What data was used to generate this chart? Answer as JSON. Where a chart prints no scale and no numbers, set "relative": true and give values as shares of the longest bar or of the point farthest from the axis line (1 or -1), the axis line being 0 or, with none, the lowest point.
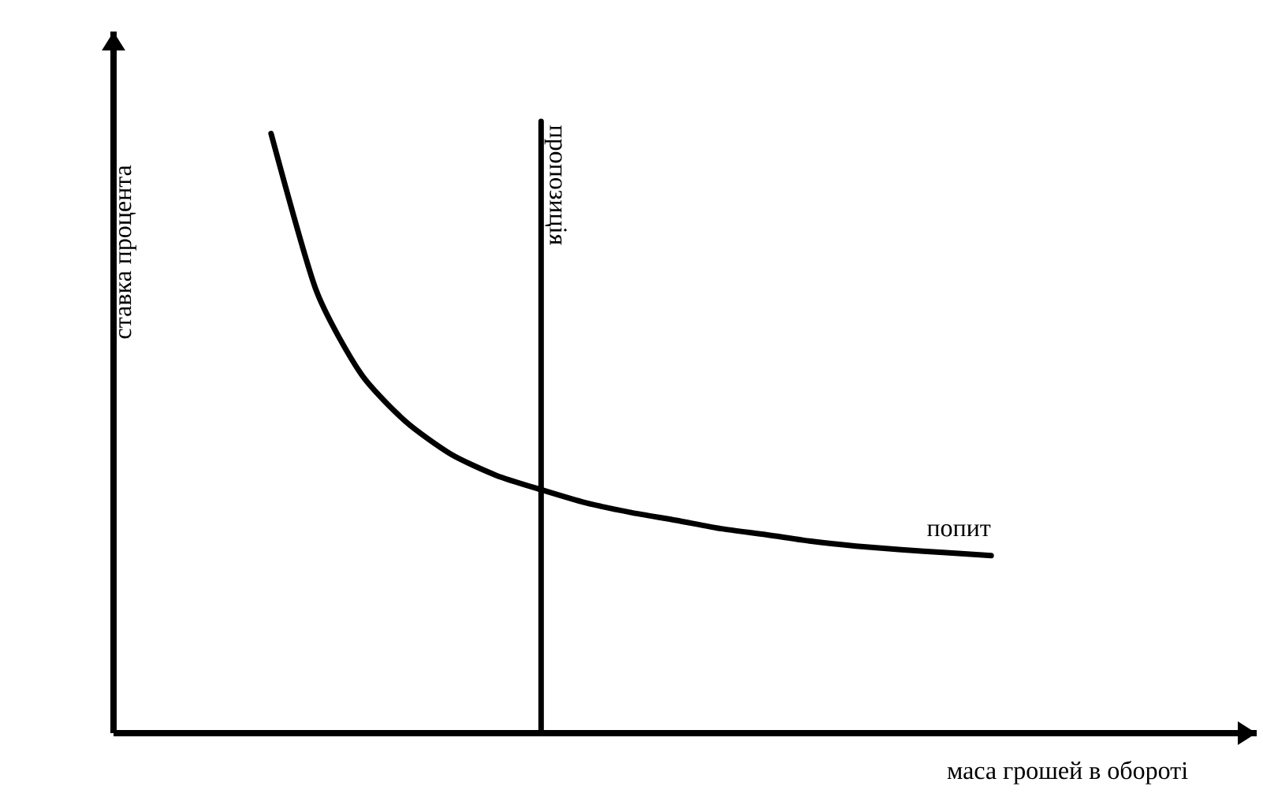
{
  "chart_data": {
    "type": "line",
    "relative": true,
    "xlabel": "маса грошей в обороті",
    "ylabel": "ставка процента",
    "legend": false,
    "marker": "none",
    "line_style": "solid",
    "categories": [
      null,
      null,
      null,
      null,
      null,
      null,
      null,
      null,
      null,
      null,
      null,
      null,
      null,
      null,
      null,
      null,
      null
    ],
    "series": [
      {
        "name": "попит",
        "color": "#000000",
        "values": [
          1,
          0.739,
          0.599,
          0.519,
          0.465,
          0.43,
          0.406,
          0.384,
          0.368,
          0.355,
          0.341,
          0.331,
          0.32,
          0.312,
          0.306,
          0.301,
          0.296
        ]
      }
    ],
    "annotations": [
      "пропозиція"
    ]
  }
}
